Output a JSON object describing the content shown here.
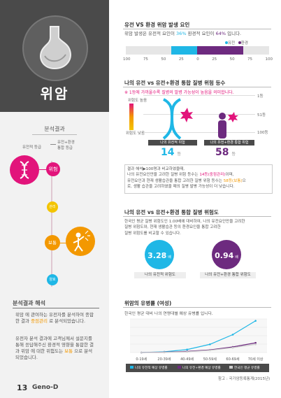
{
  "header": {
    "title": "위암"
  },
  "left": {
    "analysis_title": "분석결과",
    "genetic_grade_label": "유전적 등급",
    "combined_grade_label": "유전+환경\n통합 등급",
    "levels": {
      "high": "위험",
      "mid1": "관리",
      "mid2": "보통",
      "low": "양호"
    },
    "interpretation_title": "분석결과 해석",
    "interp_p1_a": "위암 에 관여하는 유전자를 분석하여 종합한 결과 ",
    "interp_p1_b": "중점관리",
    "interp_p1_c": " 로 분석되었습니다.",
    "interp_p2_a": "유전자 분석 결과에 고객님께서 설문지를 통해 응답해주신 환경적 영향을 통합한 결과 위암 에 대한 위험도는 ",
    "interp_p2_b": "보통",
    "interp_p2_c": " 으로 분석되었습니다.",
    "page_number": "13",
    "brand": "Geno-D"
  },
  "section1": {
    "title": "유전 VS 환경 위암 발생 요인",
    "desc_a": "위암 발생은 유전적 요인이 ",
    "desc_b": "36%",
    "desc_c": " 환경적 요인이 ",
    "desc_d": "64%",
    "desc_e": " 입니다.",
    "legend_genetic": "유전",
    "legend_env": "환경",
    "ticks": [
      "100",
      "75",
      "50",
      "25",
      "0",
      "25",
      "50",
      "75",
      "100"
    ]
  },
  "section2": {
    "title": "나의 유전 vs 유전+환경 통합 질병 위험 등수",
    "note": "※ 1등에 가까울수록 질병의 발병 가능성이 높음을 의미합니다.",
    "risk_high": "위험도 높음",
    "risk_low": "위험도 낮음",
    "rank_1": "1등",
    "rank_51": "51등",
    "rank_100": "100등",
    "genetic_label": "나의 유전적 위험",
    "combined_label": "나의 유전+환경 통합 위험",
    "genetic_rank": "14",
    "combined_rank": "58",
    "rank_unit": "등",
    "explain_1": "결과 해석▶100명과 비교하였을때,",
    "explain_2a": "나의 유전요인만을 고려한 질병 위험 등수는 ",
    "explain_2b": "14등(중점관리)",
    "explain_2c": "이며,",
    "explain_3a": "유전요인과 현재 생활습관을 통합 고려한 질병 위험 등수는 ",
    "explain_3b": "58등(보통)",
    "explain_3c": "으",
    "explain_4": "로, 생활 습관을 고려하였을 때의 질병 발병 가능성이 더 낮습니다."
  },
  "section3": {
    "title": "나의 유전 vs 유전+환경 통합 질병 위험도",
    "desc_1": "한국인 평균 질병 위험도인 1.00배에 대비하여, 나의 유전요인만을 고려한",
    "desc_2": "질병 위험도와, 현재 생활습관 등의 환경요인을 통합 고려한",
    "desc_3": "질병 위험도를 비교할 수 있습니다.",
    "genetic_value": "3.28",
    "combined_value": "0.94",
    "unit": "배",
    "genetic_label": "나의 유전적 위험도",
    "combined_label": "나의 유전+환경 통합 위험도"
  },
  "section4": {
    "title": "위암의 유병률 (여성)",
    "desc": "한국인 평균 대비 나의 연령대별 예상 유병률 입니다.",
    "source": "참고 : 국가암등록통계(2015년)",
    "legend_genetic": "나의 유전적 예상 유병률",
    "legend_combined": "나의 유전+환경 예상 유병률",
    "legend_avg": "한국인 평균 유병률"
  },
  "chart_data": {
    "type": "line",
    "categories": [
      "0-19세",
      "20-39세",
      "40-49세",
      "50-59세",
      "60-69세",
      "70세 이상"
    ],
    "series": [
      {
        "name": "나의 유전적 예상 유병률",
        "values": [
          0,
          2,
          8,
          22,
          48,
          85
        ]
      },
      {
        "name": "나의 유전+환경 예상 유병률",
        "values": [
          0,
          1,
          3,
          7,
          15,
          26
        ]
      },
      {
        "name": "한국인 평균 유병률",
        "values": [
          0,
          0.5,
          2,
          6,
          13,
          22
        ]
      }
    ],
    "ylim": [
      0,
      90
    ],
    "colors": {
      "genetic": "#1fb7e6",
      "combined": "#6d2a7f",
      "avg": "#cccccc"
    }
  },
  "colors": {
    "pink": "#e2147b",
    "orange": "#f39800",
    "purple": "#6d2a7f",
    "blue": "#1fb7e6"
  }
}
